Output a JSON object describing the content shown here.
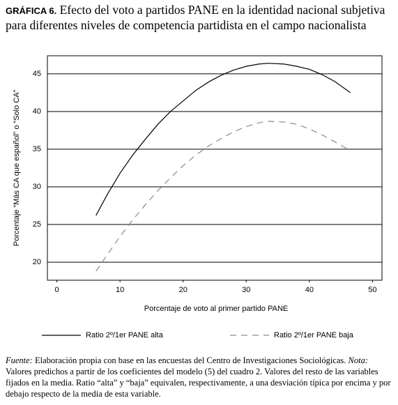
{
  "chart_data": {
    "type": "line",
    "label": "GRÁFICA 6.",
    "title": "Efecto del voto a partidos PANE en la identidad nacional subjetiva para diferentes niveles de competencia partidista en el campo nacionalista",
    "xlabel": "Porcentaje de voto al primer partido PANE",
    "ylabel": "Porcentaje “Más CA que español” o “Solo CA”",
    "x": [
      6.2,
      8,
      10,
      12,
      14,
      16,
      18,
      20,
      22,
      24,
      26,
      28,
      30,
      32,
      33.5,
      36,
      38,
      40,
      42,
      44,
      46.5
    ],
    "series": [
      {
        "name": "Ratio 2º/1er PANE alta",
        "color": "#000000",
        "linestyle": "solid",
        "values": [
          26.2,
          29,
          31.8,
          34.2,
          36.3,
          38.3,
          40,
          41.4,
          42.8,
          43.9,
          44.8,
          45.5,
          46,
          46.3,
          46.4,
          46.3,
          46,
          45.6,
          44.9,
          44,
          42.5
        ]
      },
      {
        "name": "Ratio 2º/1er PANE baja",
        "color": "#8a8a8a",
        "linestyle": "dashed",
        "values": [
          18.8,
          21,
          23.4,
          25.6,
          27.6,
          29.5,
          31.2,
          32.8,
          34.2,
          35.4,
          36.4,
          37.3,
          38,
          38.5,
          38.7,
          38.6,
          38.3,
          37.7,
          36.9,
          36,
          34.8
        ]
      }
    ],
    "xlim": [
      -1.5,
      51.5
    ],
    "xticks": [
      0,
      10,
      20,
      30,
      40,
      50
    ],
    "ylim": [
      17.6,
      47.4
    ],
    "yticks": [
      20,
      25,
      30,
      35,
      40,
      45
    ],
    "grid": true,
    "legend": "bottom",
    "source_label": "Fuente:",
    "source": "Elaboración propia con base en las encuestas del Centro de Investigaciones Sociológicas.",
    "note_label": "Nota:",
    "note": "Valores predichos a partir de los coeficientes del modelo (5) del cuadro 2. Valores del resto de las variables fijados en la media. Ratio “alta” y “baja” equivalen, respectivamente, a una desviación típica por encima y por debajo respecto de la media de esta variable."
  }
}
